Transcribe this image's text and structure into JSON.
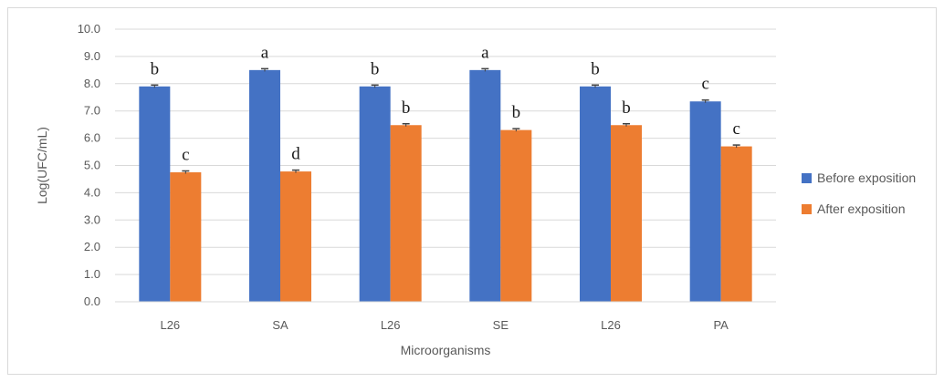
{
  "chart_data": {
    "type": "bar",
    "title": "",
    "xlabel": "Microorganisms",
    "ylabel": "Log(UFC/mL)",
    "ylim": [
      0,
      10
    ],
    "ytick_step": 1,
    "ytick_labels": [
      "0.0",
      "1.0",
      "2.0",
      "3.0",
      "4.0",
      "5.0",
      "6.0",
      "7.0",
      "8.0",
      "9.0",
      "10.0"
    ],
    "grid": true,
    "legend_position": "right",
    "categories": [
      "L26",
      "SA",
      "L26",
      "SE",
      "L26",
      "PA"
    ],
    "series": [
      {
        "name": "Before exposition",
        "color": "#4472c4",
        "values": [
          7.9,
          8.5,
          7.9,
          8.5,
          7.9,
          7.35
        ],
        "errors": [
          0.05,
          0.05,
          0.05,
          0.05,
          0.05,
          0.05
        ],
        "letters": [
          "b",
          "a",
          "b",
          "a",
          "b",
          "c"
        ]
      },
      {
        "name": "After exposition",
        "color": "#ed7d31",
        "values": [
          4.75,
          4.78,
          6.48,
          6.3,
          6.48,
          5.7
        ],
        "errors": [
          0.05,
          0.05,
          0.05,
          0.05,
          0.05,
          0.05
        ],
        "letters": [
          "c",
          "d",
          "b",
          "b",
          "b",
          "c"
        ]
      }
    ]
  }
}
